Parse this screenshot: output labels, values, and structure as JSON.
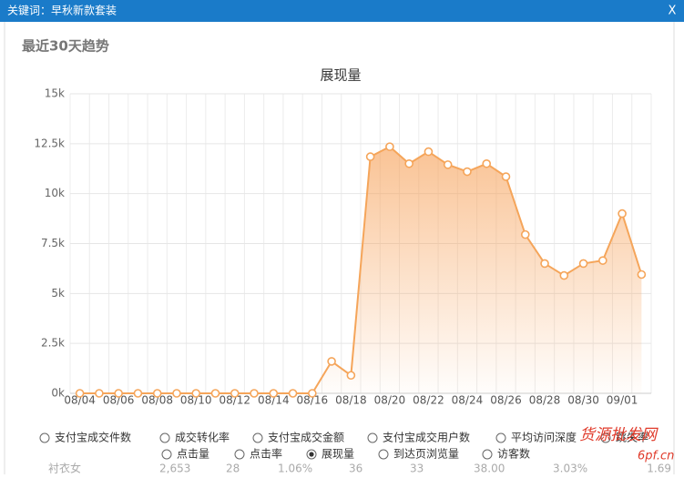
{
  "header": {
    "title": "关键词：早秋新款套装",
    "close": "X"
  },
  "section_title": "最近30天趋势",
  "chart_data": {
    "type": "line",
    "title": "展现量",
    "categories": [
      "08/04",
      null,
      "08/06",
      null,
      "08/08",
      null,
      "08/10",
      null,
      "08/12",
      null,
      "08/14",
      null,
      "08/16",
      null,
      "08/18",
      null,
      "08/20",
      null,
      "08/22",
      null,
      "08/24",
      null,
      "08/26",
      null,
      "08/28",
      null,
      "08/30",
      null,
      "09/01",
      null
    ],
    "values": [
      0,
      0,
      0,
      0,
      0,
      0,
      0,
      0,
      0,
      0,
      0,
      0,
      0,
      1600,
      900,
      11850,
      12350,
      11500,
      12100,
      11450,
      11100,
      11500,
      10850,
      7950,
      6500,
      5900,
      6500,
      6650,
      9000,
      5950
    ],
    "color": "#f5a55a",
    "area": true,
    "ylim": [
      0,
      15000
    ],
    "yticks": [
      {
        "value": 0,
        "label": "0k"
      },
      {
        "value": 2500,
        "label": "2.5k"
      },
      {
        "value": 5000,
        "label": "5k"
      },
      {
        "value": 7500,
        "label": "7.5k"
      },
      {
        "value": 10000,
        "label": "10k"
      },
      {
        "value": 12500,
        "label": "12.5k"
      },
      {
        "value": 15000,
        "label": "15k"
      }
    ],
    "grid": true
  },
  "metrics": {
    "row1": [
      {
        "label": "支付宝成交件数",
        "checked": false
      },
      {
        "label": "成交转化率",
        "checked": false
      },
      {
        "label": "支付宝成交金额",
        "checked": false
      },
      {
        "label": "支付宝成交用户数",
        "checked": false
      },
      {
        "label": "平均访问深度",
        "checked": false
      },
      {
        "label": "跳失率",
        "checked": false
      }
    ],
    "row2": [
      {
        "label": "点击量",
        "checked": false
      },
      {
        "label": "点击率",
        "checked": false
      },
      {
        "label": "展现量",
        "checked": true
      },
      {
        "label": "到达页浏览量",
        "checked": false
      },
      {
        "label": "访客数",
        "checked": false
      }
    ]
  },
  "table_row": [
    "衬衣女",
    "2,653",
    "28",
    "1.06%",
    "36",
    "33",
    "38.00",
    "3.03%",
    "1.69"
  ],
  "watermark": {
    "text": "货源批发网",
    "url": "6pf.cn"
  }
}
